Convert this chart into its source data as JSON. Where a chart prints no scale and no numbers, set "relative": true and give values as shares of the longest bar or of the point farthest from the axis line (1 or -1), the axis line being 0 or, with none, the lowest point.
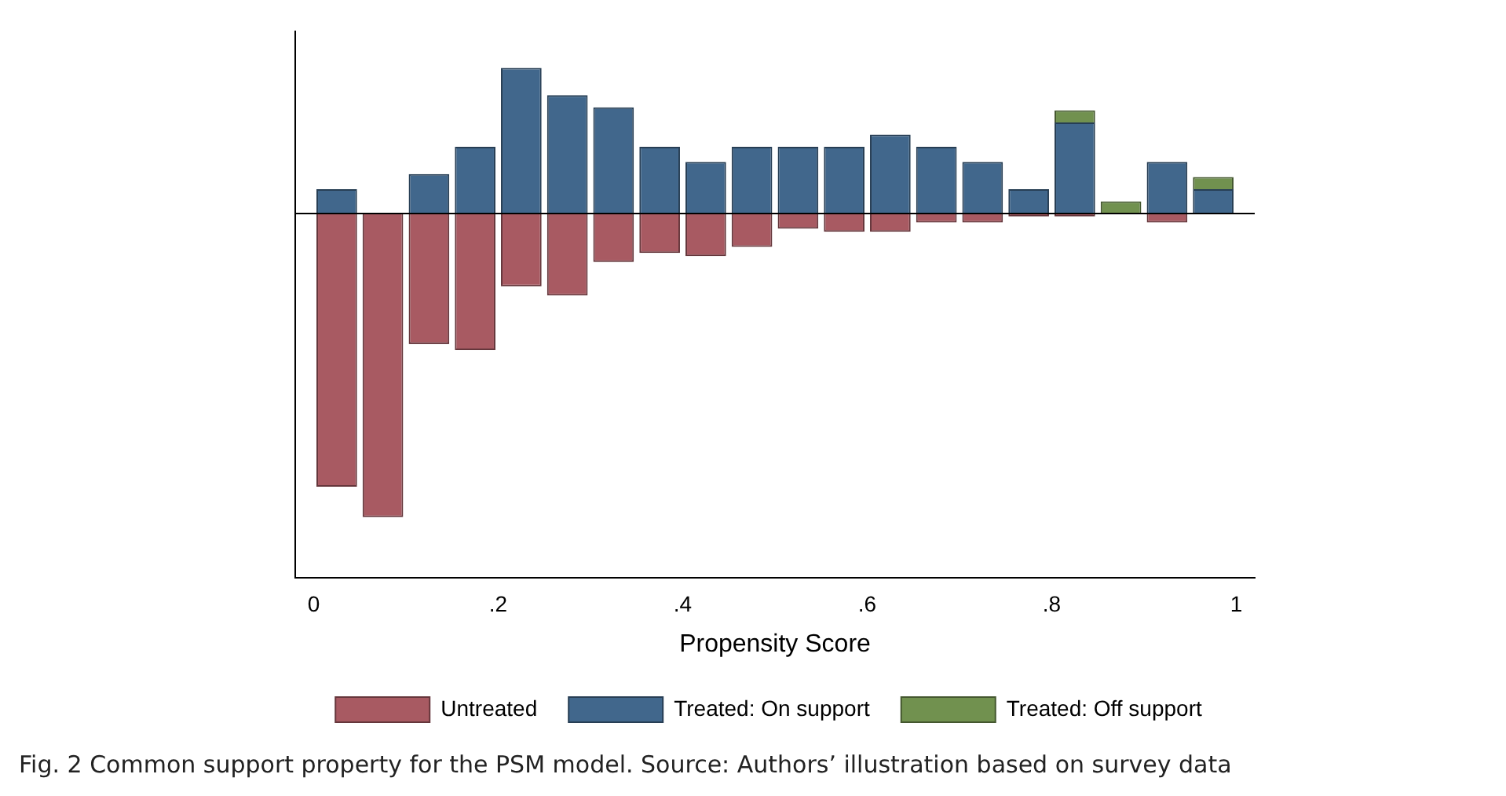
{
  "chart_data": {
    "type": "bar",
    "xlabel": "Propensity Score",
    "relative": true,
    "stacked": true,
    "legend": "bottom",
    "grid": false,
    "x": [
      0.025,
      0.075,
      0.125,
      0.175,
      0.225,
      0.275,
      0.325,
      0.375,
      0.425,
      0.475,
      0.525,
      0.575,
      0.625,
      0.675,
      0.725,
      0.775,
      0.825,
      0.875,
      0.925,
      0.975
    ],
    "xlim": [
      -0.02,
      1.02
    ],
    "xticks": [
      {
        "value": 0,
        "label": "0"
      },
      {
        "value": 0.2,
        "label": ".2"
      },
      {
        "value": 0.4,
        "label": ".4"
      },
      {
        "value": 0.6,
        "label": ".6"
      },
      {
        "value": 0.8,
        "label": ".8"
      },
      {
        "value": 1,
        "label": "1"
      }
    ],
    "series": [
      {
        "name": "Untreated",
        "color": "#a85a62",
        "values": [
          -0.9,
          -1,
          -0.43,
          -0.45,
          -0.24,
          -0.27,
          -0.16,
          -0.13,
          -0.14,
          -0.11,
          -0.05,
          -0.06,
          -0.06,
          -0.03,
          -0.03,
          -0.01,
          -0.01,
          null,
          -0.03,
          null
        ]
      },
      {
        "name": "Treated: On support",
        "color": "#41678c",
        "values": [
          0.08,
          null,
          0.13,
          0.22,
          0.48,
          0.39,
          0.35,
          0.22,
          0.17,
          0.22,
          0.22,
          0.22,
          0.26,
          0.22,
          0.17,
          0.08,
          0.3,
          null,
          0.17,
          0.08
        ]
      },
      {
        "name": "Treated: Off support",
        "color": "#71914f",
        "values": [
          null,
          null,
          null,
          null,
          null,
          null,
          null,
          null,
          null,
          null,
          null,
          null,
          null,
          null,
          null,
          null,
          0.04,
          0.04,
          null,
          0.04
        ]
      }
    ],
    "annotations": [
      "Fig. 2  Common support property for the PSM model. Source: Authors’ illustration based on survey data"
    ]
  }
}
